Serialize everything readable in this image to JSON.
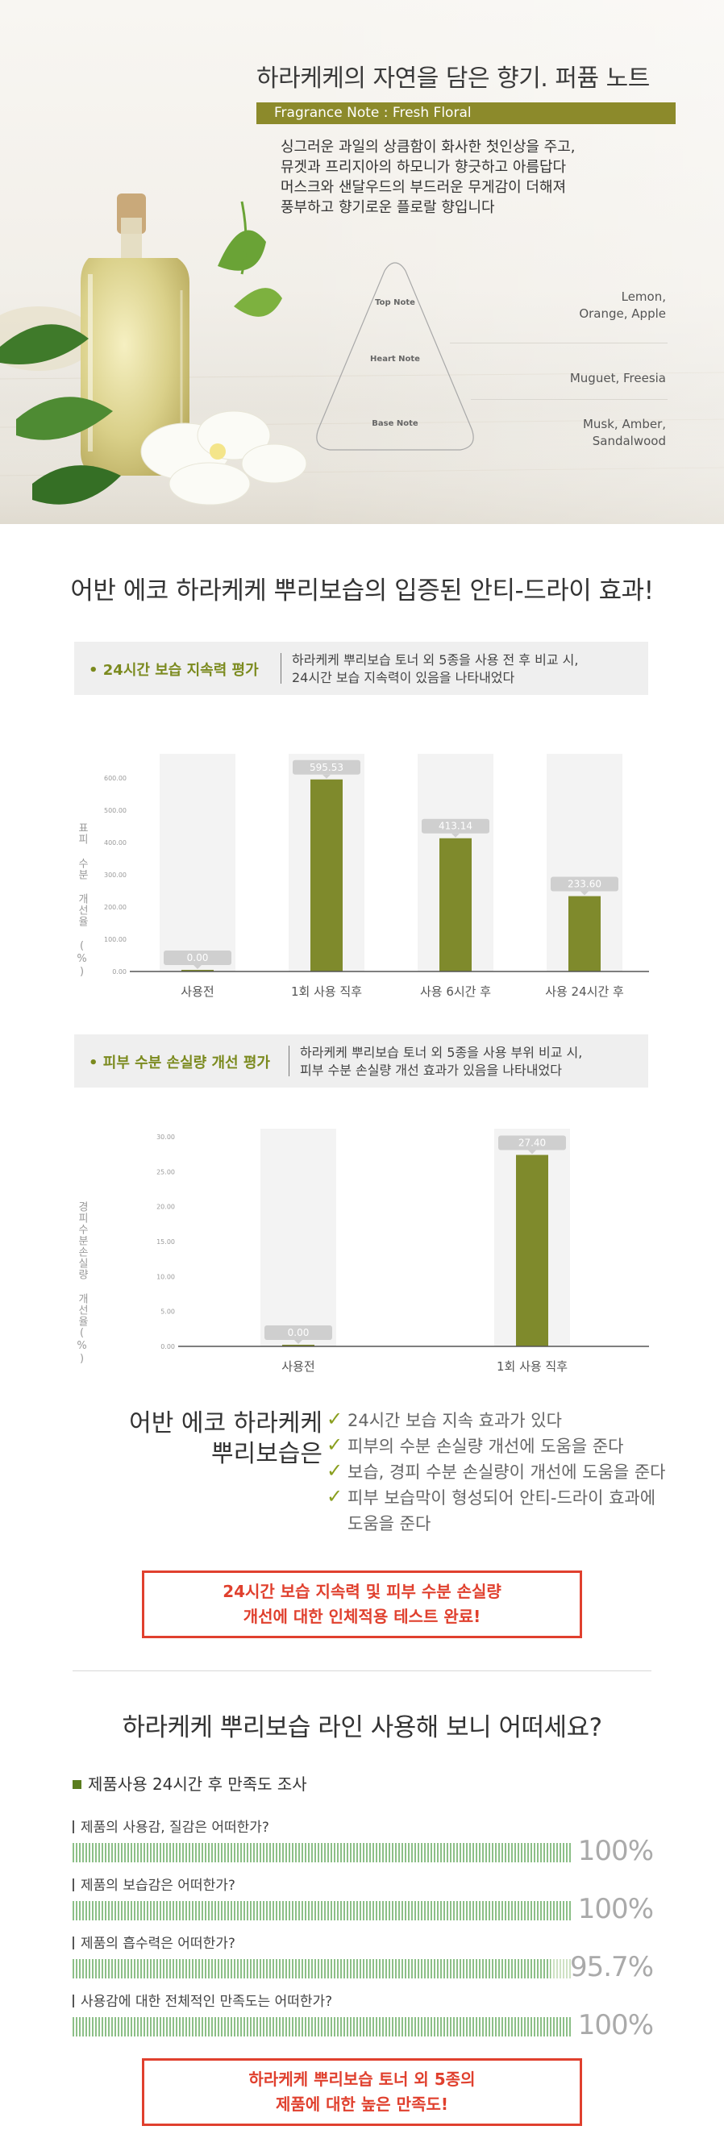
{
  "hero": {
    "title": "하라케케의 자연을 담은 향기. 퍼퓸 노트",
    "note_bar": "Fragrance Note : Fresh Floral",
    "description": [
      "싱그러운 과일의 상큼함이 화사한 첫인상을 주고,",
      "뮤겟과 프리지아의 하모니가 향긋하고 아름답다",
      "머스크와 샌달우드의 부드러운 무게감이 더해져",
      "풍부하고 향기로운 플로랄 향입니다"
    ],
    "tiers": [
      {
        "label": "Top Note",
        "notes": [
          "Lemon,",
          "Orange, Apple"
        ]
      },
      {
        "label": "Heart Note",
        "notes": [
          "Muguet, Freesia"
        ]
      },
      {
        "label": "Base Note",
        "notes": [
          "Musk, Amber,",
          "Sandalwood"
        ]
      }
    ]
  },
  "section1": {
    "title": "어반 에코 하라케케 뿌리보습의 입증된 안티-드라이 효과!"
  },
  "eval1": {
    "title": "• 24시간 보습 지속력 평가",
    "desc": [
      "하라케케 뿌리보습 토너 외 5종을 사용 전 후 비교 시,",
      "24시간 보습 지속력이 있음을 나타내었다"
    ]
  },
  "eval2": {
    "title": "• 피부 수분 손실량 개선 평가",
    "desc": [
      "하라케케 뿌리보습 토너 외 5종을 사용 부위 비교 시,",
      "피부 수분 손실량 개선 효과가 있음을 나타내었다"
    ]
  },
  "chart_data": [
    {
      "type": "bar",
      "title": "",
      "ylabel": "표피 수분 개선율 (%)",
      "ylim": [
        0,
        650
      ],
      "yticks": [
        "0.00",
        "100.00",
        "200.00",
        "300.00",
        "400.00",
        "500.00",
        "600.00"
      ],
      "categories": [
        "사용전",
        "1회 사용 직후",
        "사용 6시간 후",
        "사용 24시간 후"
      ],
      "values": [
        0.0,
        595.53,
        413.14,
        233.6
      ],
      "data_labels": [
        "0.00",
        "595.53",
        "413.14",
        "233.60"
      ],
      "bar_color": "#7f8a2c",
      "grid": false
    },
    {
      "type": "bar",
      "title": "",
      "ylabel": "경피수분손실량 개선율(%)",
      "ylim": [
        0,
        30
      ],
      "yticks": [
        "0.00",
        "5.00",
        "10.00",
        "15.00",
        "20.00",
        "25.00",
        "30.00"
      ],
      "categories": [
        "사용전",
        "1회 사용 직후"
      ],
      "values": [
        0.0,
        27.4
      ],
      "data_labels": [
        "0.00",
        "27.40"
      ],
      "bar_color": "#7f8a2c",
      "grid": false
    }
  ],
  "summary": {
    "left": [
      "어반 에코 하라케케",
      "뿌리보습은"
    ],
    "check_mark": "✓",
    "checks": [
      [
        "24시간 보습 지속 효과가 있다"
      ],
      [
        "피부의 수분 손실량 개선에 도움을 준다"
      ],
      [
        "보습, 경피 수분 손실량이 개선에 도움을 준다"
      ],
      [
        "피부 보습막이 형성되어 안티-드라이 효과에",
        "도움을 준다"
      ]
    ]
  },
  "red_box1": [
    "24시간 보습 지속력 및 피부 수분 손실량",
    "개선에 대한 인체적용 테스트 완료!"
  ],
  "section2": {
    "title": "하라케케 뿌리보습 라인 사용해 보니 어떠세요?"
  },
  "survey": {
    "heading": "제품사용 24시간 후 만족도 조사",
    "questions": [
      {
        "text": "제품의 사용감, 질감은 어떠한가?",
        "percent": 100,
        "label": "100%"
      },
      {
        "text": "제품의 보습감은 어떠한가?",
        "percent": 100,
        "label": "100%"
      },
      {
        "text": "제품의 흡수력은 어떠한가?",
        "percent": 95.7,
        "label": "95.7%"
      },
      {
        "text": "사용감에 대한 전체적인 만족도는 어떠한가?",
        "percent": 100,
        "label": "100%"
      }
    ]
  },
  "red_box2": [
    "하라케케 뿌리보습 토너 외 5종의",
    "제품에 대한 높은 만족도!"
  ]
}
